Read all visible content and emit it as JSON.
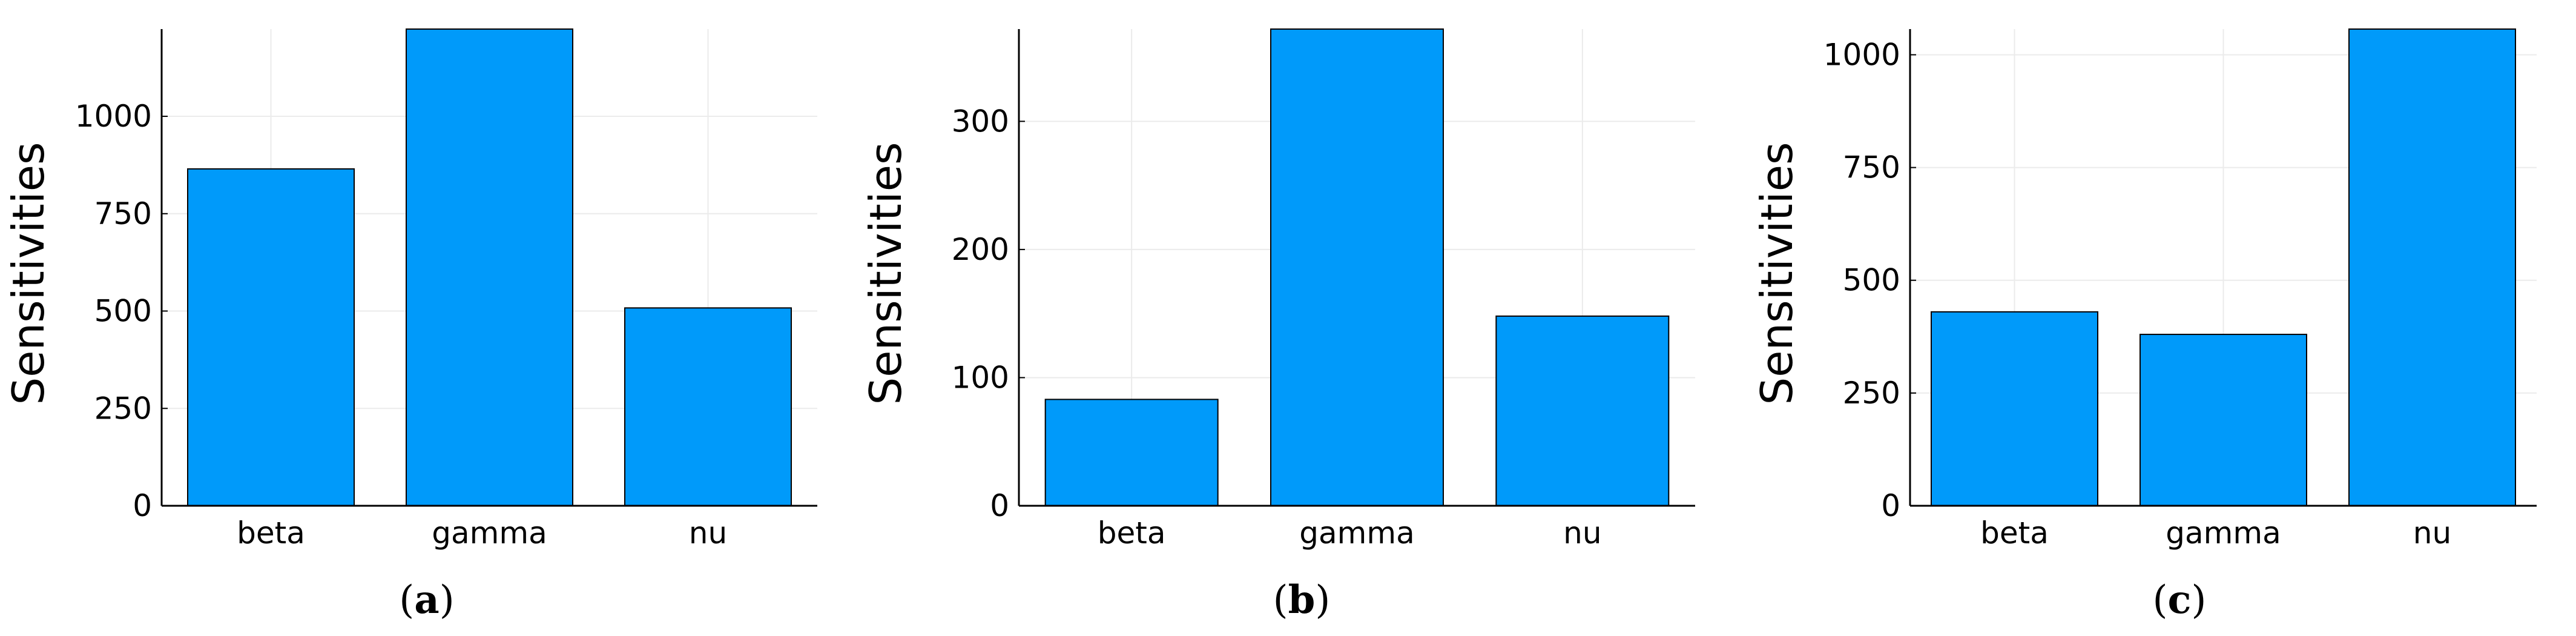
{
  "colors": {
    "bar_fill": "#009AFA",
    "bar_stroke": "#000000",
    "grid": "#EBEBEB",
    "axis": "#000000"
  },
  "chart_data": [
    {
      "type": "bar",
      "panel_label": "a",
      "categories": [
        "beta",
        "gamma",
        "nu"
      ],
      "values": [
        865,
        1224,
        508
      ],
      "ylabel": "Sensitivities",
      "ylim": [
        0,
        1224
      ],
      "yticks": [
        0,
        250,
        500,
        750,
        1000
      ],
      "ytick_labels": [
        "0",
        "250",
        "500",
        "750",
        "1000"
      ],
      "grid": true,
      "legend": "none"
    },
    {
      "type": "bar",
      "panel_label": "b",
      "categories": [
        "beta",
        "gamma",
        "nu"
      ],
      "values": [
        83,
        372,
        148
      ],
      "ylabel": "Sensitivities",
      "ylim": [
        0,
        372
      ],
      "yticks": [
        0,
        100,
        200,
        300
      ],
      "ytick_labels": [
        "0",
        "100",
        "200",
        "300"
      ],
      "grid": true,
      "legend": "none"
    },
    {
      "type": "bar",
      "panel_label": "c",
      "categories": [
        "beta",
        "gamma",
        "nu"
      ],
      "values": [
        430,
        380,
        1057
      ],
      "ylabel": "Sensitivities",
      "ylim": [
        0,
        1057
      ],
      "yticks": [
        0,
        250,
        500,
        750,
        1000
      ],
      "ytick_labels": [
        "0",
        "250",
        "500",
        "750",
        "1000"
      ],
      "grid": true,
      "legend": "none"
    }
  ]
}
